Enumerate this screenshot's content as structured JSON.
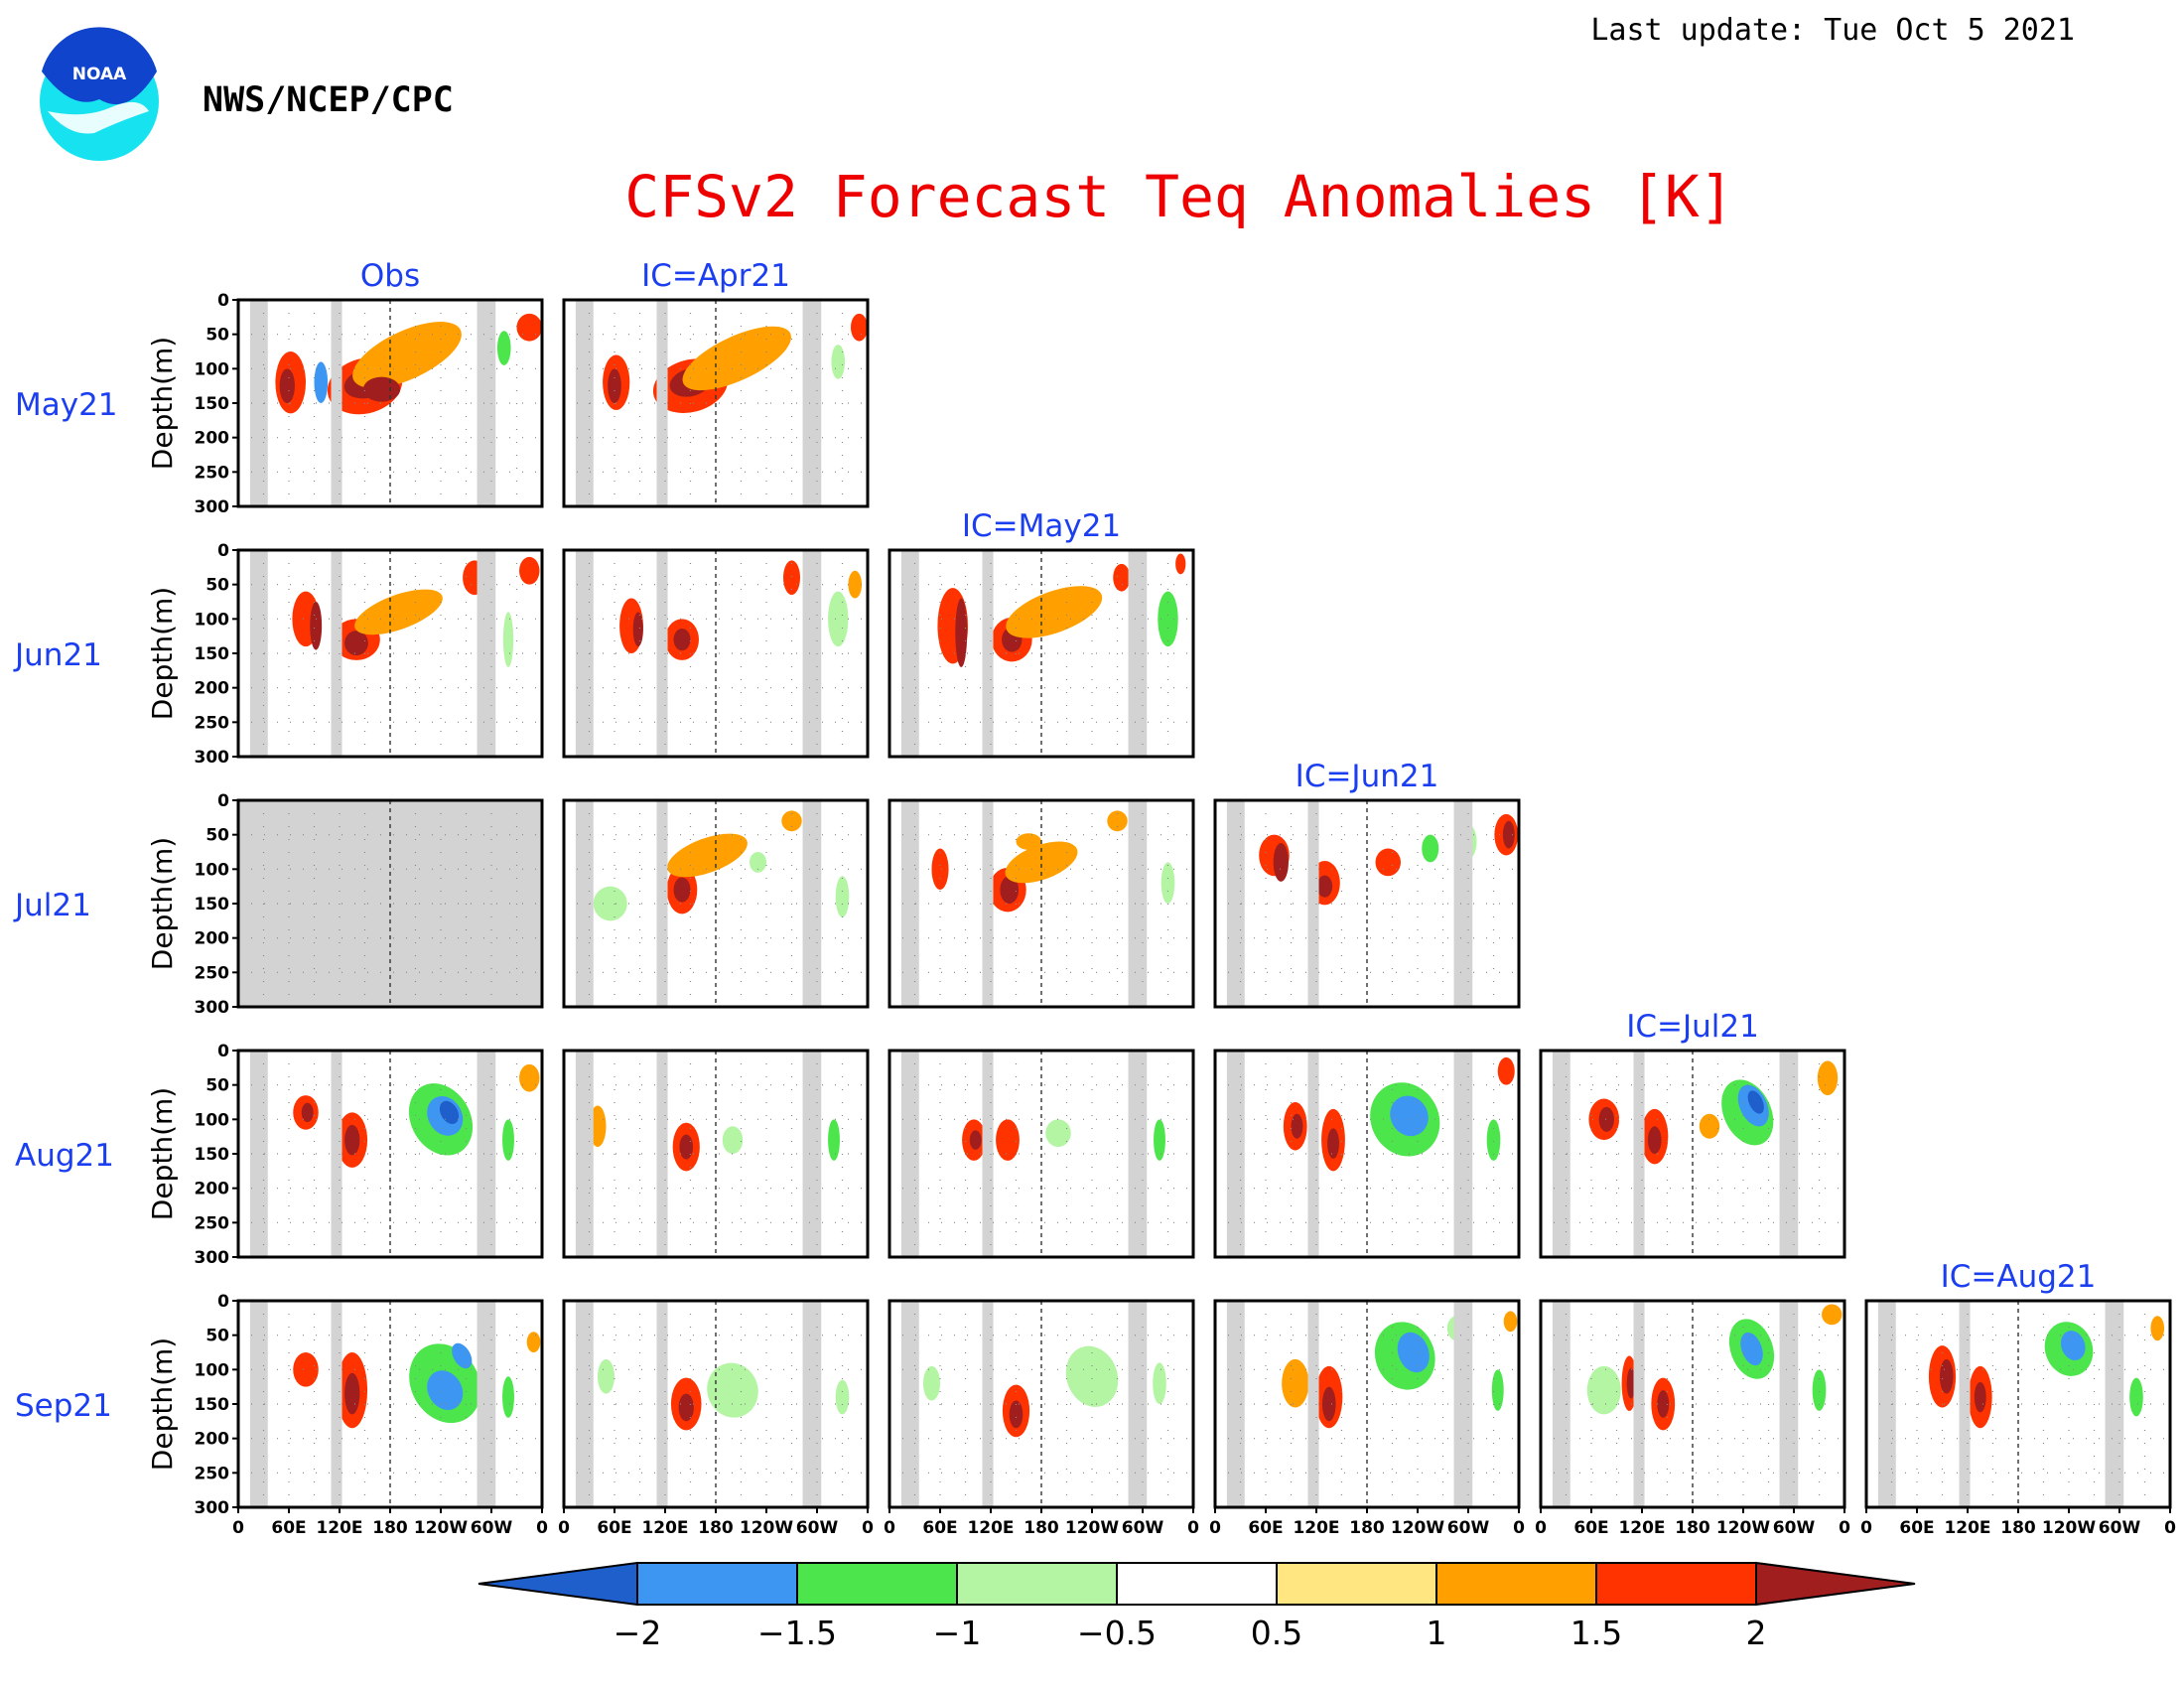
{
  "header": {
    "agency": "NWS/NCEP/CPC",
    "last_update": "Last update: Tue Oct 5 2021",
    "logo_text": "NOAA"
  },
  "chart_data": {
    "type": "heatmap",
    "title": "CFSv2 Forecast Teq Anomalies [K]",
    "ylabel": "Depth(m)",
    "column_titles": [
      "Obs",
      "IC=Apr21",
      "IC=May21",
      "IC=Jun21",
      "IC=Jul21",
      "IC=Aug21"
    ],
    "row_labels": [
      "May21",
      "Jun21",
      "Jul21",
      "Aug21",
      "Sep21"
    ],
    "y_ticks": [
      "0",
      "50",
      "100",
      "150",
      "200",
      "250",
      "300"
    ],
    "ylim": [
      300,
      0
    ],
    "x_ticks": [
      "0",
      "60E",
      "120E",
      "180",
      "120W",
      "60W",
      "0"
    ],
    "xlim": [
      0,
      360
    ],
    "colorbar": {
      "levels": [
        "−2",
        "−1.5",
        "−1",
        "−0.5",
        "0.5",
        "1",
        "1.5",
        "2"
      ],
      "colors": [
        "#1f5fcc",
        "#3d97f2",
        "#4ce64c",
        "#b3f5a3",
        "#ffffff",
        "#ffe680",
        "#ffa000",
        "#ff3300",
        "#a01e1e"
      ]
    },
    "land_mask_color": "#d3d3d3",
    "panels_missing": [
      {
        "row": "Jul21",
        "column": "Obs"
      }
    ],
    "anomaly_features": [
      {
        "row": "May21",
        "column": "Obs",
        "peak": "+1.5 to +2 K near 150E–140W at 100–150 m"
      },
      {
        "row": "Aug21",
        "column": "Obs",
        "peak": "−1.5 to −2 K near 110W at 75–125 m"
      },
      {
        "row": "Sep21",
        "column": "Obs",
        "peak": "−1.5 K near 110–120W at 100–175 m"
      }
    ]
  }
}
